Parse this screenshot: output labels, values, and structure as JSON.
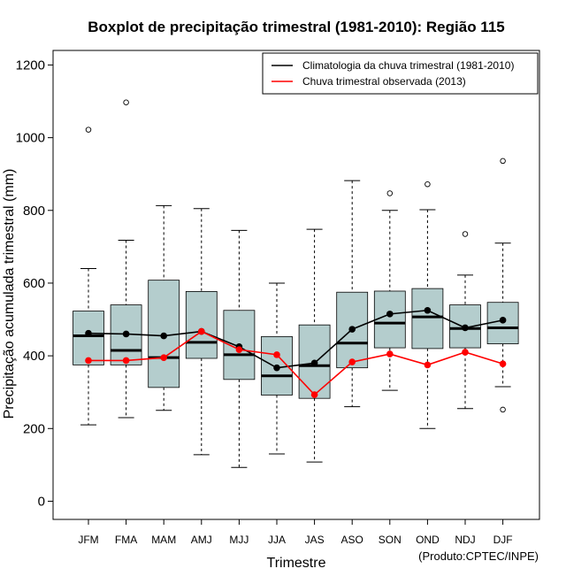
{
  "chart_data": {
    "type": "boxplot",
    "title": "Boxplot de precipitação trimestral (1981-2010): Região 115",
    "xlabel": "Trimestre",
    "ylabel": "Precipitação acumulada trimestral (mm)",
    "credit": "(Produto:CPTEC/INPE)",
    "ylim": [
      -50,
      1240
    ],
    "yticks": [
      0,
      200,
      400,
      600,
      800,
      1000,
      1200
    ],
    "categories": [
      "JFM",
      "FMA",
      "MAM",
      "AMJ",
      "MJJ",
      "JJA",
      "JAS",
      "ASO",
      "SON",
      "OND",
      "NDJ",
      "DJF"
    ],
    "boxes": [
      {
        "min": 210,
        "q1": 375,
        "median": 455,
        "q3": 523,
        "max": 640,
        "outliers": [
          1022
        ]
      },
      {
        "min": 230,
        "q1": 375,
        "median": 415,
        "q3": 540,
        "max": 718,
        "outliers": [
          1097
        ]
      },
      {
        "min": 250,
        "q1": 313,
        "median": 395,
        "q3": 608,
        "max": 813,
        "outliers": []
      },
      {
        "min": 128,
        "q1": 393,
        "median": 437,
        "q3": 577,
        "max": 805,
        "outliers": []
      },
      {
        "min": 93,
        "q1": 335,
        "median": 403,
        "q3": 525,
        "max": 745,
        "outliers": []
      },
      {
        "min": 130,
        "q1": 292,
        "median": 345,
        "q3": 453,
        "max": 600,
        "outliers": []
      },
      {
        "min": 108,
        "q1": 283,
        "median": 373,
        "q3": 485,
        "max": 748,
        "outliers": []
      },
      {
        "min": 260,
        "q1": 367,
        "median": 435,
        "q3": 575,
        "max": 882,
        "outliers": []
      },
      {
        "min": 305,
        "q1": 422,
        "median": 490,
        "q3": 578,
        "max": 800,
        "outliers": [
          847
        ]
      },
      {
        "min": 200,
        "q1": 420,
        "median": 507,
        "q3": 585,
        "max": 802,
        "outliers": [
          872
        ]
      },
      {
        "min": 255,
        "q1": 422,
        "median": 475,
        "q3": 540,
        "max": 622,
        "outliers": [
          735
        ]
      },
      {
        "min": 315,
        "q1": 433,
        "median": 477,
        "q3": 547,
        "max": 710,
        "outliers": [
          252,
          936
        ]
      }
    ],
    "series": [
      {
        "name": "Climatologia da chuva trimestral (1981-2010)",
        "color": "#000000",
        "values": [
          462,
          460,
          455,
          467,
          425,
          367,
          380,
          473,
          515,
          525,
          477,
          498
        ]
      },
      {
        "name": "Chuva trimestral observada (2013)",
        "color": "#ff0000",
        "values": [
          387,
          387,
          395,
          467,
          417,
          403,
          293,
          383,
          405,
          375,
          410,
          378
        ]
      }
    ],
    "box_fill": "#b4cdcd",
    "legend_position": "top-right"
  }
}
